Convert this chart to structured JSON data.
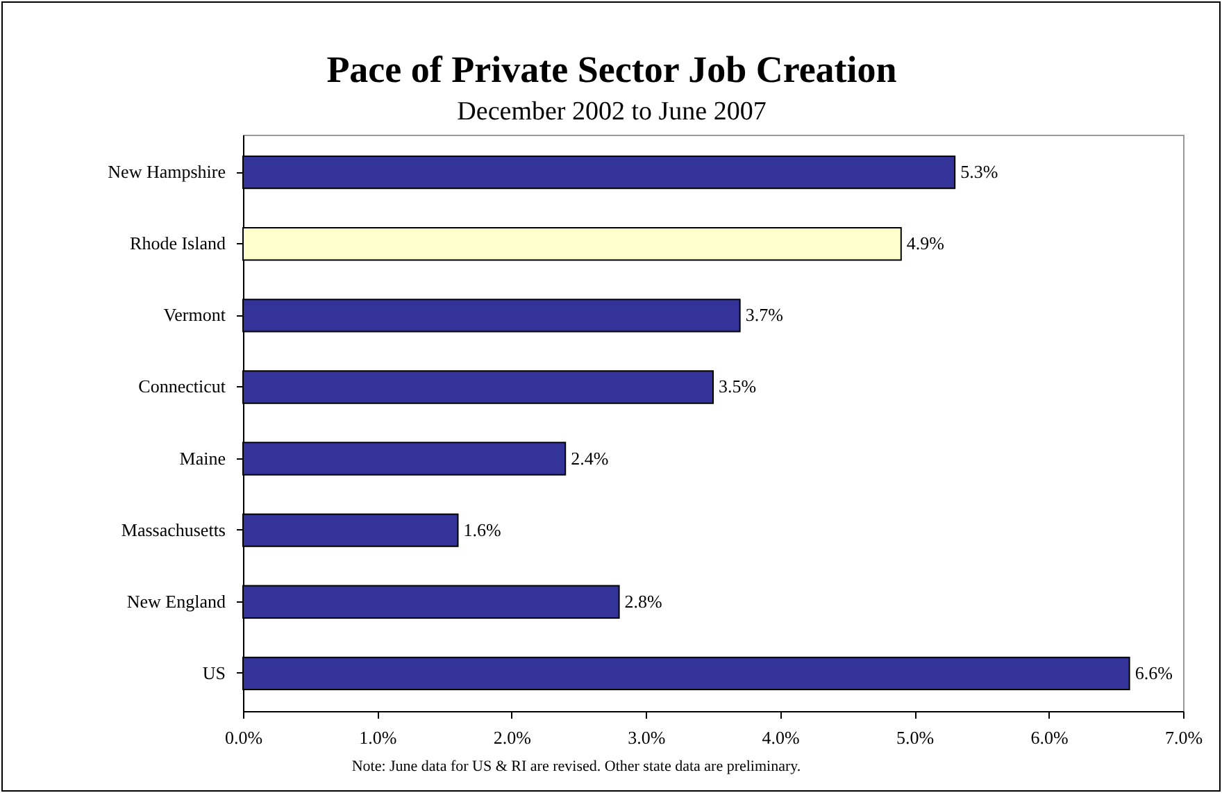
{
  "chart_data": {
    "type": "bar",
    "orientation": "horizontal",
    "title": "Pace of Private Sector Job Creation",
    "subtitle": "December 2002 to June 2007",
    "categories": [
      "New Hampshire",
      "Rhode Island",
      "Vermont",
      "Connecticut",
      "Maine",
      "Massachusetts",
      "New England",
      "US"
    ],
    "values": [
      5.3,
      4.9,
      3.7,
      3.5,
      2.4,
      1.6,
      2.8,
      6.6
    ],
    "colors": [
      "#333399",
      "#ffffcc",
      "#333399",
      "#333399",
      "#333399",
      "#333399",
      "#333399",
      "#333399"
    ],
    "value_labels": [
      "5.3%",
      "4.9%",
      "3.7%",
      "3.5%",
      "2.4%",
      "1.6%",
      "2.8%",
      "6.6%"
    ],
    "xlim": [
      0,
      7
    ],
    "xticks": [
      {
        "value": 0,
        "label": "0.0%"
      },
      {
        "value": 1,
        "label": "1.0%"
      },
      {
        "value": 2,
        "label": "2.0%"
      },
      {
        "value": 3,
        "label": "3.0%"
      },
      {
        "value": 4,
        "label": "4.0%"
      },
      {
        "value": 5,
        "label": "5.0%"
      },
      {
        "value": 6,
        "label": "6.0%"
      },
      {
        "value": 7,
        "label": "7.0%"
      }
    ],
    "grid": false,
    "annotations": [
      "Note: June data for US & RI are revised. Other state data are preliminary."
    ]
  }
}
